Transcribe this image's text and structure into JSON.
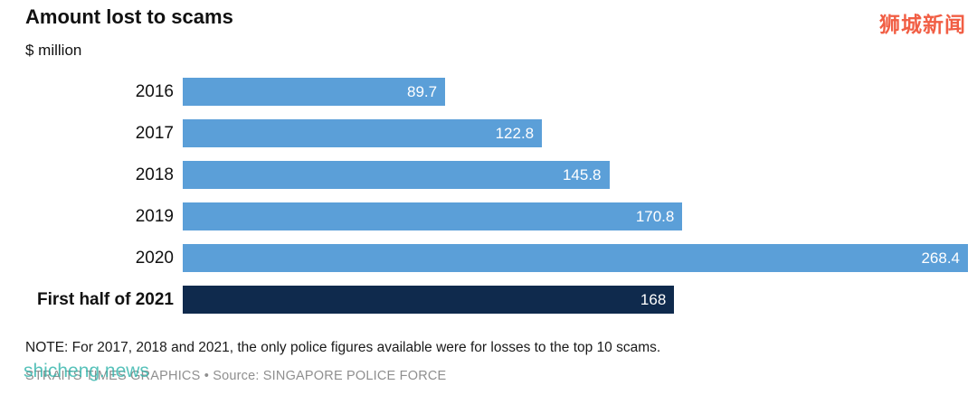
{
  "header": {
    "title": "Amount lost to scams",
    "unit_label": "$ million",
    "watermark_top": "狮城新闻",
    "watermark_top_color": "#f0482b"
  },
  "chart_data": {
    "type": "bar",
    "orientation": "horizontal",
    "title": "Amount lost to scams",
    "unit": "$ million",
    "categories": [
      "2016",
      "2017",
      "2018",
      "2019",
      "2020",
      "First half of 2021"
    ],
    "values": [
      89.7,
      122.8,
      145.8,
      170.8,
      268.4,
      168
    ],
    "value_labels": [
      "89.7",
      "122.8",
      "145.8",
      "170.8",
      "268.4",
      "168"
    ],
    "xlim": [
      0,
      268.4
    ],
    "highlight_index": 5,
    "bar_colors": [
      "#5b9fd8",
      "#5b9fd8",
      "#5b9fd8",
      "#5b9fd8",
      "#5b9fd8",
      "#0f2a4d"
    ],
    "value_label_color": "#ffffff",
    "grid": false,
    "legend": false
  },
  "footer": {
    "note": "NOTE: For 2017, 2018 and 2021, the only police figures available were for losses to the top 10 scams.",
    "source": "STRAITS TIMES GRAPHICS • Source: SINGAPORE POLICE FORCE",
    "watermark_bottom": "shicheng.news",
    "watermark_bottom_color": "#2fb3aa"
  }
}
